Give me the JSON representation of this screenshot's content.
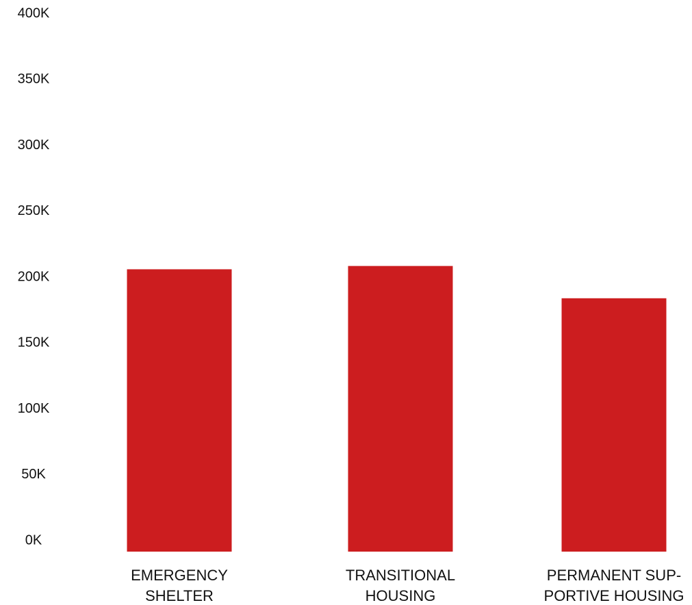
{
  "chart_data": {
    "type": "bar",
    "title": "",
    "xlabel": "",
    "ylabel": "",
    "categories": [
      [
        "EMERGENCY",
        "SHELTER"
      ],
      [
        "TRANSITIONAL",
        "HOUSING"
      ],
      [
        "PERMANENT SUP-",
        "PORTIVE HOUSING"
      ]
    ],
    "values": [
      206000,
      208500,
      184000
    ],
    "ylim": [
      0,
      400000
    ],
    "yticks": [
      0,
      50000,
      100000,
      150000,
      200000,
      250000,
      300000,
      350000,
      400000
    ],
    "ytick_labels": [
      "0K",
      "50K",
      "100K",
      "150K",
      "200K",
      "250K",
      "300K",
      "350K",
      "400K"
    ],
    "grid": false,
    "legend": "none",
    "bar_color": "#cc1d1f"
  }
}
